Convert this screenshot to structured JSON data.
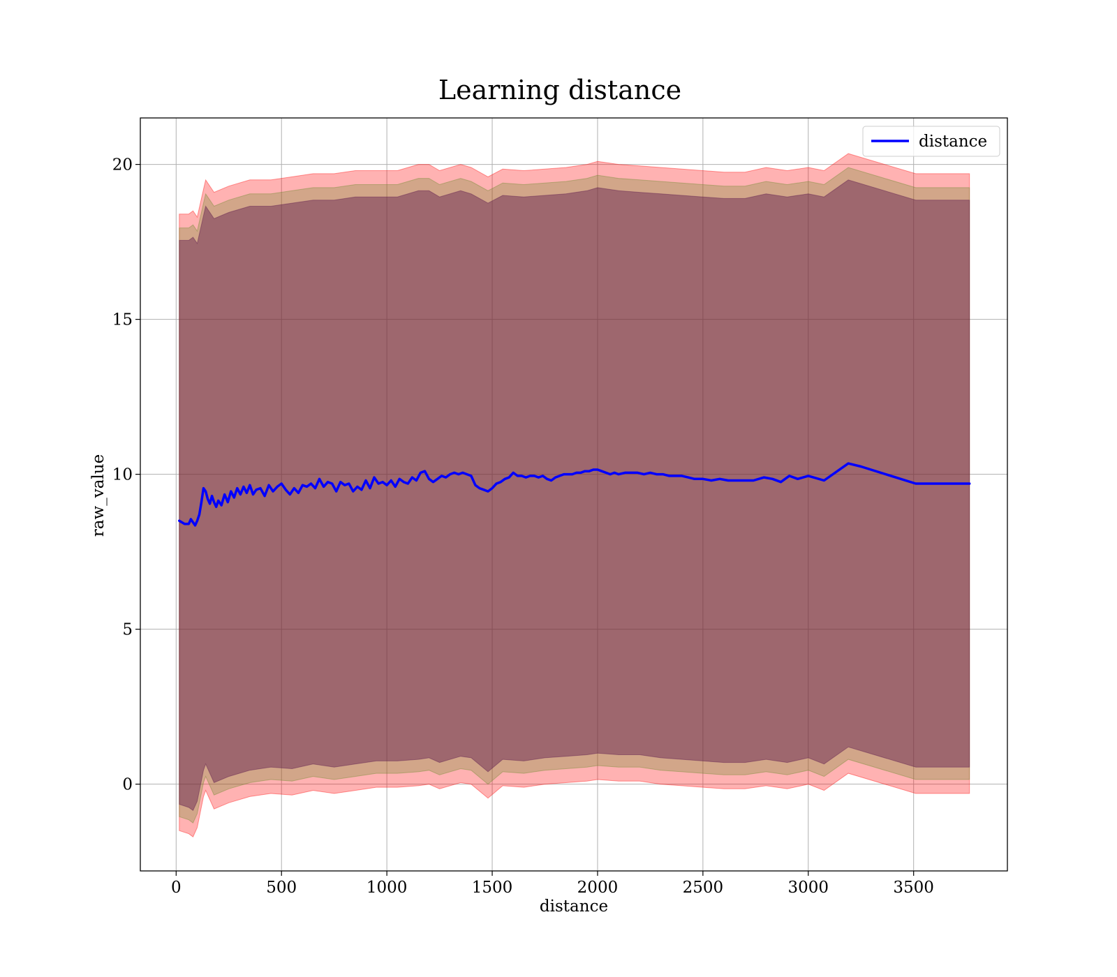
{
  "chart_data": {
    "type": "line",
    "title": "Learning distance",
    "xlabel": "distance",
    "ylabel": "raw_value",
    "xlim": [
      -170,
      3945
    ],
    "ylim": [
      -2.8,
      21.5
    ],
    "xticks": [
      0,
      500,
      1000,
      1500,
      2000,
      2500,
      3000,
      3500
    ],
    "yticks": [
      0,
      5,
      10,
      15,
      20
    ],
    "grid": true,
    "legend_position": "top-right",
    "series": [
      {
        "name": "distance",
        "color": "#0000ff",
        "x": [
          15,
          40,
          60,
          70,
          80,
          90,
          100,
          110,
          120,
          130,
          140,
          150,
          160,
          170,
          180,
          190,
          200,
          215,
          230,
          245,
          260,
          275,
          290,
          305,
          320,
          335,
          350,
          365,
          380,
          400,
          420,
          440,
          460,
          480,
          500,
          520,
          540,
          560,
          580,
          600,
          620,
          640,
          660,
          680,
          700,
          720,
          740,
          760,
          780,
          800,
          820,
          840,
          860,
          880,
          900,
          920,
          940,
          960,
          980,
          1000,
          1020,
          1040,
          1060,
          1080,
          1100,
          1120,
          1140,
          1160,
          1180,
          1200,
          1220,
          1240,
          1260,
          1280,
          1300,
          1320,
          1340,
          1360,
          1380,
          1400,
          1420,
          1440,
          1460,
          1480,
          1500,
          1520,
          1540,
          1560,
          1580,
          1600,
          1620,
          1640,
          1660,
          1680,
          1700,
          1720,
          1740,
          1760,
          1780,
          1800,
          1820,
          1840,
          1860,
          1880,
          1900,
          1920,
          1940,
          1960,
          1980,
          2000,
          2020,
          2040,
          2060,
          2080,
          2100,
          2130,
          2160,
          2190,
          2220,
          2250,
          2280,
          2310,
          2340,
          2370,
          2400,
          2430,
          2460,
          2500,
          2540,
          2580,
          2620,
          2660,
          2700,
          2740,
          2790,
          2830,
          2870,
          2910,
          2950,
          3000,
          3075,
          3190,
          3250,
          3510,
          3765
        ],
        "values": [
          8.5,
          8.4,
          8.4,
          8.55,
          8.45,
          8.35,
          8.5,
          8.7,
          9.1,
          9.55,
          9.45,
          9.2,
          9.05,
          9.3,
          9.1,
          8.95,
          9.15,
          9.0,
          9.35,
          9.1,
          9.45,
          9.25,
          9.55,
          9.35,
          9.6,
          9.4,
          9.65,
          9.35,
          9.5,
          9.55,
          9.3,
          9.65,
          9.45,
          9.6,
          9.7,
          9.5,
          9.35,
          9.55,
          9.4,
          9.65,
          9.6,
          9.7,
          9.55,
          9.85,
          9.6,
          9.75,
          9.7,
          9.45,
          9.75,
          9.65,
          9.7,
          9.45,
          9.6,
          9.5,
          9.8,
          9.55,
          9.9,
          9.7,
          9.75,
          9.65,
          9.8,
          9.6,
          9.85,
          9.75,
          9.7,
          9.9,
          9.8,
          10.05,
          10.1,
          9.85,
          9.75,
          9.85,
          9.95,
          9.9,
          10.0,
          10.05,
          10.0,
          10.05,
          10.0,
          9.95,
          9.65,
          9.55,
          9.5,
          9.45,
          9.55,
          9.7,
          9.75,
          9.85,
          9.9,
          10.05,
          9.95,
          9.95,
          9.9,
          9.95,
          9.95,
          9.9,
          9.95,
          9.85,
          9.8,
          9.9,
          9.95,
          10.0,
          10.0,
          10.0,
          10.05,
          10.05,
          10.1,
          10.1,
          10.15,
          10.15,
          10.1,
          10.05,
          10.0,
          10.05,
          10.0,
          10.05,
          10.05,
          10.05,
          10.0,
          10.05,
          10.0,
          10.0,
          9.95,
          9.95,
          9.95,
          9.9,
          9.85,
          9.85,
          9.8,
          9.85,
          9.8,
          9.8,
          9.8,
          9.8,
          9.9,
          9.85,
          9.75,
          9.95,
          9.85,
          9.95,
          9.8,
          10.35,
          10.25,
          9.7,
          9.7
        ]
      }
    ],
    "bands": [
      {
        "color": "#ff0000",
        "opacity": 0.3,
        "x": [
          15,
          60,
          80,
          100,
          130,
          140,
          180,
          250,
          350,
          450,
          550,
          650,
          750,
          850,
          950,
          1050,
          1150,
          1200,
          1250,
          1350,
          1400,
          1480,
          1550,
          1650,
          1750,
          1850,
          1950,
          2000,
          2100,
          2200,
          2300,
          2400,
          2500,
          2600,
          2700,
          2800,
          2900,
          3000,
          3075,
          3190,
          3510,
          3765
        ],
        "upper": [
          18.4,
          18.4,
          18.5,
          18.3,
          19.2,
          19.5,
          19.1,
          19.3,
          19.5,
          19.5,
          19.6,
          19.7,
          19.7,
          19.8,
          19.8,
          19.8,
          20.0,
          20.0,
          19.8,
          20.0,
          19.9,
          19.6,
          19.85,
          19.8,
          19.85,
          19.9,
          20.0,
          20.1,
          20.0,
          19.95,
          19.9,
          19.85,
          19.8,
          19.75,
          19.75,
          19.9,
          19.8,
          19.9,
          19.8,
          20.35,
          19.7,
          19.7
        ],
        "lower": [
          -1.5,
          -1.6,
          -1.7,
          -1.4,
          -0.4,
          -0.2,
          -0.8,
          -0.6,
          -0.4,
          -0.3,
          -0.35,
          -0.2,
          -0.3,
          -0.2,
          -0.1,
          -0.1,
          -0.05,
          0.0,
          -0.15,
          0.05,
          0.0,
          -0.45,
          -0.05,
          -0.1,
          0.0,
          0.05,
          0.1,
          0.15,
          0.1,
          0.1,
          0.0,
          -0.05,
          -0.1,
          -0.15,
          -0.15,
          -0.05,
          -0.15,
          0.0,
          -0.2,
          0.35,
          -0.3,
          -0.3
        ]
      },
      {
        "color": "#6a8a2a",
        "opacity": 0.3,
        "x": [
          15,
          60,
          80,
          100,
          130,
          140,
          180,
          250,
          350,
          450,
          550,
          650,
          750,
          850,
          950,
          1050,
          1150,
          1200,
          1250,
          1350,
          1400,
          1480,
          1550,
          1650,
          1750,
          1850,
          1950,
          2000,
          2100,
          2200,
          2300,
          2400,
          2500,
          2600,
          2700,
          2800,
          2900,
          3000,
          3075,
          3190,
          3510,
          3765
        ],
        "upper": [
          17.95,
          17.95,
          18.05,
          17.85,
          18.75,
          19.05,
          18.65,
          18.85,
          19.05,
          19.05,
          19.15,
          19.25,
          19.25,
          19.35,
          19.35,
          19.35,
          19.55,
          19.55,
          19.35,
          19.55,
          19.45,
          19.15,
          19.4,
          19.35,
          19.4,
          19.45,
          19.55,
          19.65,
          19.55,
          19.5,
          19.45,
          19.4,
          19.35,
          19.3,
          19.3,
          19.45,
          19.35,
          19.45,
          19.35,
          19.9,
          19.25,
          19.25
        ],
        "lower": [
          -1.05,
          -1.15,
          -1.25,
          -0.95,
          0.05,
          0.25,
          -0.35,
          -0.15,
          0.05,
          0.15,
          0.1,
          0.25,
          0.15,
          0.25,
          0.35,
          0.35,
          0.4,
          0.45,
          0.3,
          0.5,
          0.45,
          0.0,
          0.4,
          0.35,
          0.45,
          0.5,
          0.55,
          0.6,
          0.55,
          0.55,
          0.45,
          0.4,
          0.35,
          0.3,
          0.3,
          0.4,
          0.3,
          0.45,
          0.25,
          0.8,
          0.15,
          0.15
        ]
      },
      {
        "color": "#55114a",
        "opacity": 0.42,
        "x": [
          15,
          60,
          80,
          100,
          130,
          140,
          180,
          250,
          350,
          450,
          550,
          650,
          750,
          850,
          950,
          1050,
          1150,
          1200,
          1250,
          1350,
          1400,
          1480,
          1550,
          1650,
          1750,
          1850,
          1950,
          2000,
          2100,
          2200,
          2300,
          2400,
          2500,
          2600,
          2700,
          2800,
          2900,
          3000,
          3075,
          3190,
          3510,
          3765
        ],
        "upper": [
          17.55,
          17.55,
          17.65,
          17.45,
          18.35,
          18.65,
          18.25,
          18.45,
          18.65,
          18.65,
          18.75,
          18.85,
          18.85,
          18.95,
          18.95,
          18.95,
          19.15,
          19.15,
          18.95,
          19.15,
          19.05,
          18.75,
          19.0,
          18.95,
          19.0,
          19.05,
          19.15,
          19.25,
          19.15,
          19.1,
          19.05,
          19.0,
          18.95,
          18.9,
          18.9,
          19.05,
          18.95,
          19.05,
          18.95,
          19.5,
          18.85,
          18.85
        ],
        "lower": [
          -0.65,
          -0.75,
          -0.85,
          -0.55,
          0.45,
          0.65,
          0.05,
          0.25,
          0.45,
          0.55,
          0.5,
          0.65,
          0.55,
          0.65,
          0.75,
          0.75,
          0.8,
          0.85,
          0.7,
          0.9,
          0.85,
          0.4,
          0.8,
          0.75,
          0.85,
          0.9,
          0.95,
          1.0,
          0.95,
          0.95,
          0.85,
          0.8,
          0.75,
          0.7,
          0.7,
          0.8,
          0.7,
          0.85,
          0.65,
          1.2,
          0.55,
          0.55
        ]
      }
    ]
  }
}
